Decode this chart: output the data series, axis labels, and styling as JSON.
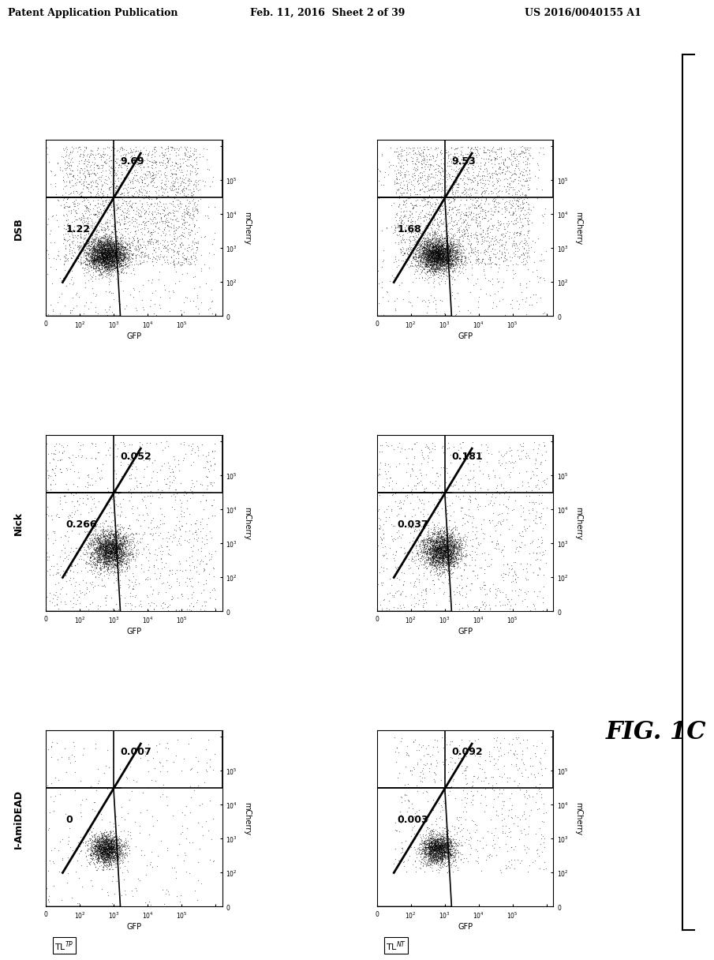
{
  "header_left": "Patent Application Publication",
  "header_mid": "Feb. 11, 2016  Sheet 2 of 39",
  "header_right": "US 2016/0040155 A1",
  "figure_label": "FIG. 1C",
  "background_color": "#ffffff",
  "plots": [
    {
      "row": 0,
      "col": 0,
      "row_label": "I-AmiDEAD",
      "col_label": "TLᴞP",
      "upper_value": "0.007",
      "lower_value": "0",
      "has_upper_gate": true,
      "has_lower_gate": true,
      "cluster_type": "dense"
    },
    {
      "row": 0,
      "col": 1,
      "row_label": "I-AmiDEAD",
      "col_label": "TLᴺT",
      "upper_value": "0.092",
      "lower_value": "0.003",
      "has_upper_gate": true,
      "has_lower_gate": true,
      "cluster_type": "sparse"
    },
    {
      "row": 1,
      "col": 0,
      "row_label": "Nick",
      "col_label": "TLᴞP",
      "upper_value": "0.052",
      "lower_value": "0.266",
      "has_upper_gate": true,
      "has_lower_gate": true,
      "cluster_type": "medium"
    },
    {
      "row": 1,
      "col": 1,
      "row_label": "Nick",
      "col_label": "TLᴺT",
      "upper_value": "0.181",
      "lower_value": "0.037",
      "has_upper_gate": true,
      "has_lower_gate": true,
      "cluster_type": "medium"
    },
    {
      "row": 2,
      "col": 0,
      "row_label": "DSB",
      "col_label": "TLᴞP",
      "upper_value": "9.69",
      "lower_value": "1.22",
      "has_upper_gate": true,
      "has_lower_gate": true,
      "cluster_type": "large_spread"
    },
    {
      "row": 2,
      "col": 1,
      "row_label": "DSB",
      "col_label": "TLᴺT",
      "upper_value": "9.53",
      "lower_value": "1.68",
      "has_upper_gate": true,
      "has_lower_gate": true,
      "cluster_type": "large_spread"
    }
  ]
}
